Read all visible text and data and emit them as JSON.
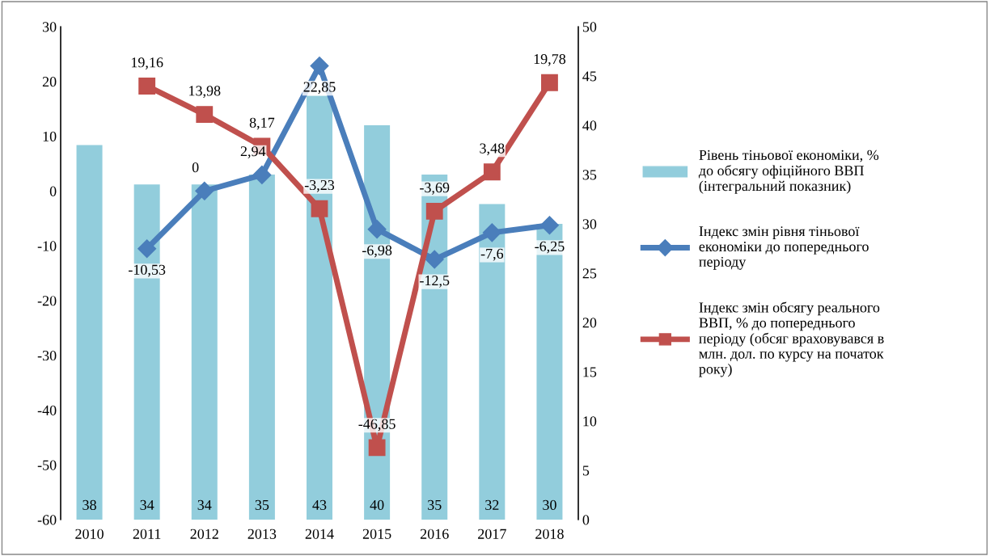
{
  "chart_data": {
    "type": "bar",
    "categories": [
      "2010",
      "2011",
      "2012",
      "2013",
      "2014",
      "2015",
      "2016",
      "2017",
      "2018"
    ],
    "series": [
      {
        "name": "Рівень тіньової економіки, %\nдо обсягу офіційного ВВП\n(інтегральний показник)",
        "axis": "y2",
        "color": "#92cddc",
        "values": [
          38,
          34,
          34,
          35,
          43,
          40,
          35,
          32,
          30
        ],
        "value_labels": [
          "38",
          "34",
          "34",
          "35",
          "43",
          "40",
          "35",
          "32",
          "30"
        ]
      },
      {
        "name": "Індекс змін рівня тіньової\nекономіки до попереднього\nперіоду",
        "type": "line",
        "color": "#4a7ebb",
        "marker": "diamond",
        "values": [
          null,
          -10.53,
          0,
          2.94,
          22.85,
          -6.98,
          -12.5,
          -7.6,
          -6.25
        ],
        "value_labels": [
          null,
          "-10,53",
          "0",
          "2,94",
          "22,85",
          "-6,98",
          "-12,5",
          "-7,6",
          "-6,25"
        ]
      },
      {
        "name": "Індекс змін обсягу реального\nВВП, % до попереднього\nперіоду (обсяг враховувався в\nмлн. дол. по курсу на початок\nроку)",
        "type": "line",
        "color": "#c0504d",
        "marker": "square",
        "values": [
          null,
          19.16,
          13.98,
          8.17,
          -3.23,
          -46.85,
          -3.69,
          3.48,
          19.78
        ],
        "value_labels": [
          null,
          "19,16",
          "13,98",
          "8,17",
          "-3,23",
          "-46,85",
          "-3,69",
          "3,48",
          "19,78"
        ]
      }
    ],
    "ylim": [
      -60,
      30
    ],
    "yticks": [
      -60,
      -50,
      -40,
      -30,
      -20,
      -10,
      0,
      10,
      20,
      30
    ],
    "y2lim": [
      0,
      50
    ],
    "y2ticks": [
      0,
      5,
      10,
      15,
      20,
      25,
      30,
      35,
      40,
      45,
      50
    ],
    "grid": false,
    "legend": "right"
  }
}
